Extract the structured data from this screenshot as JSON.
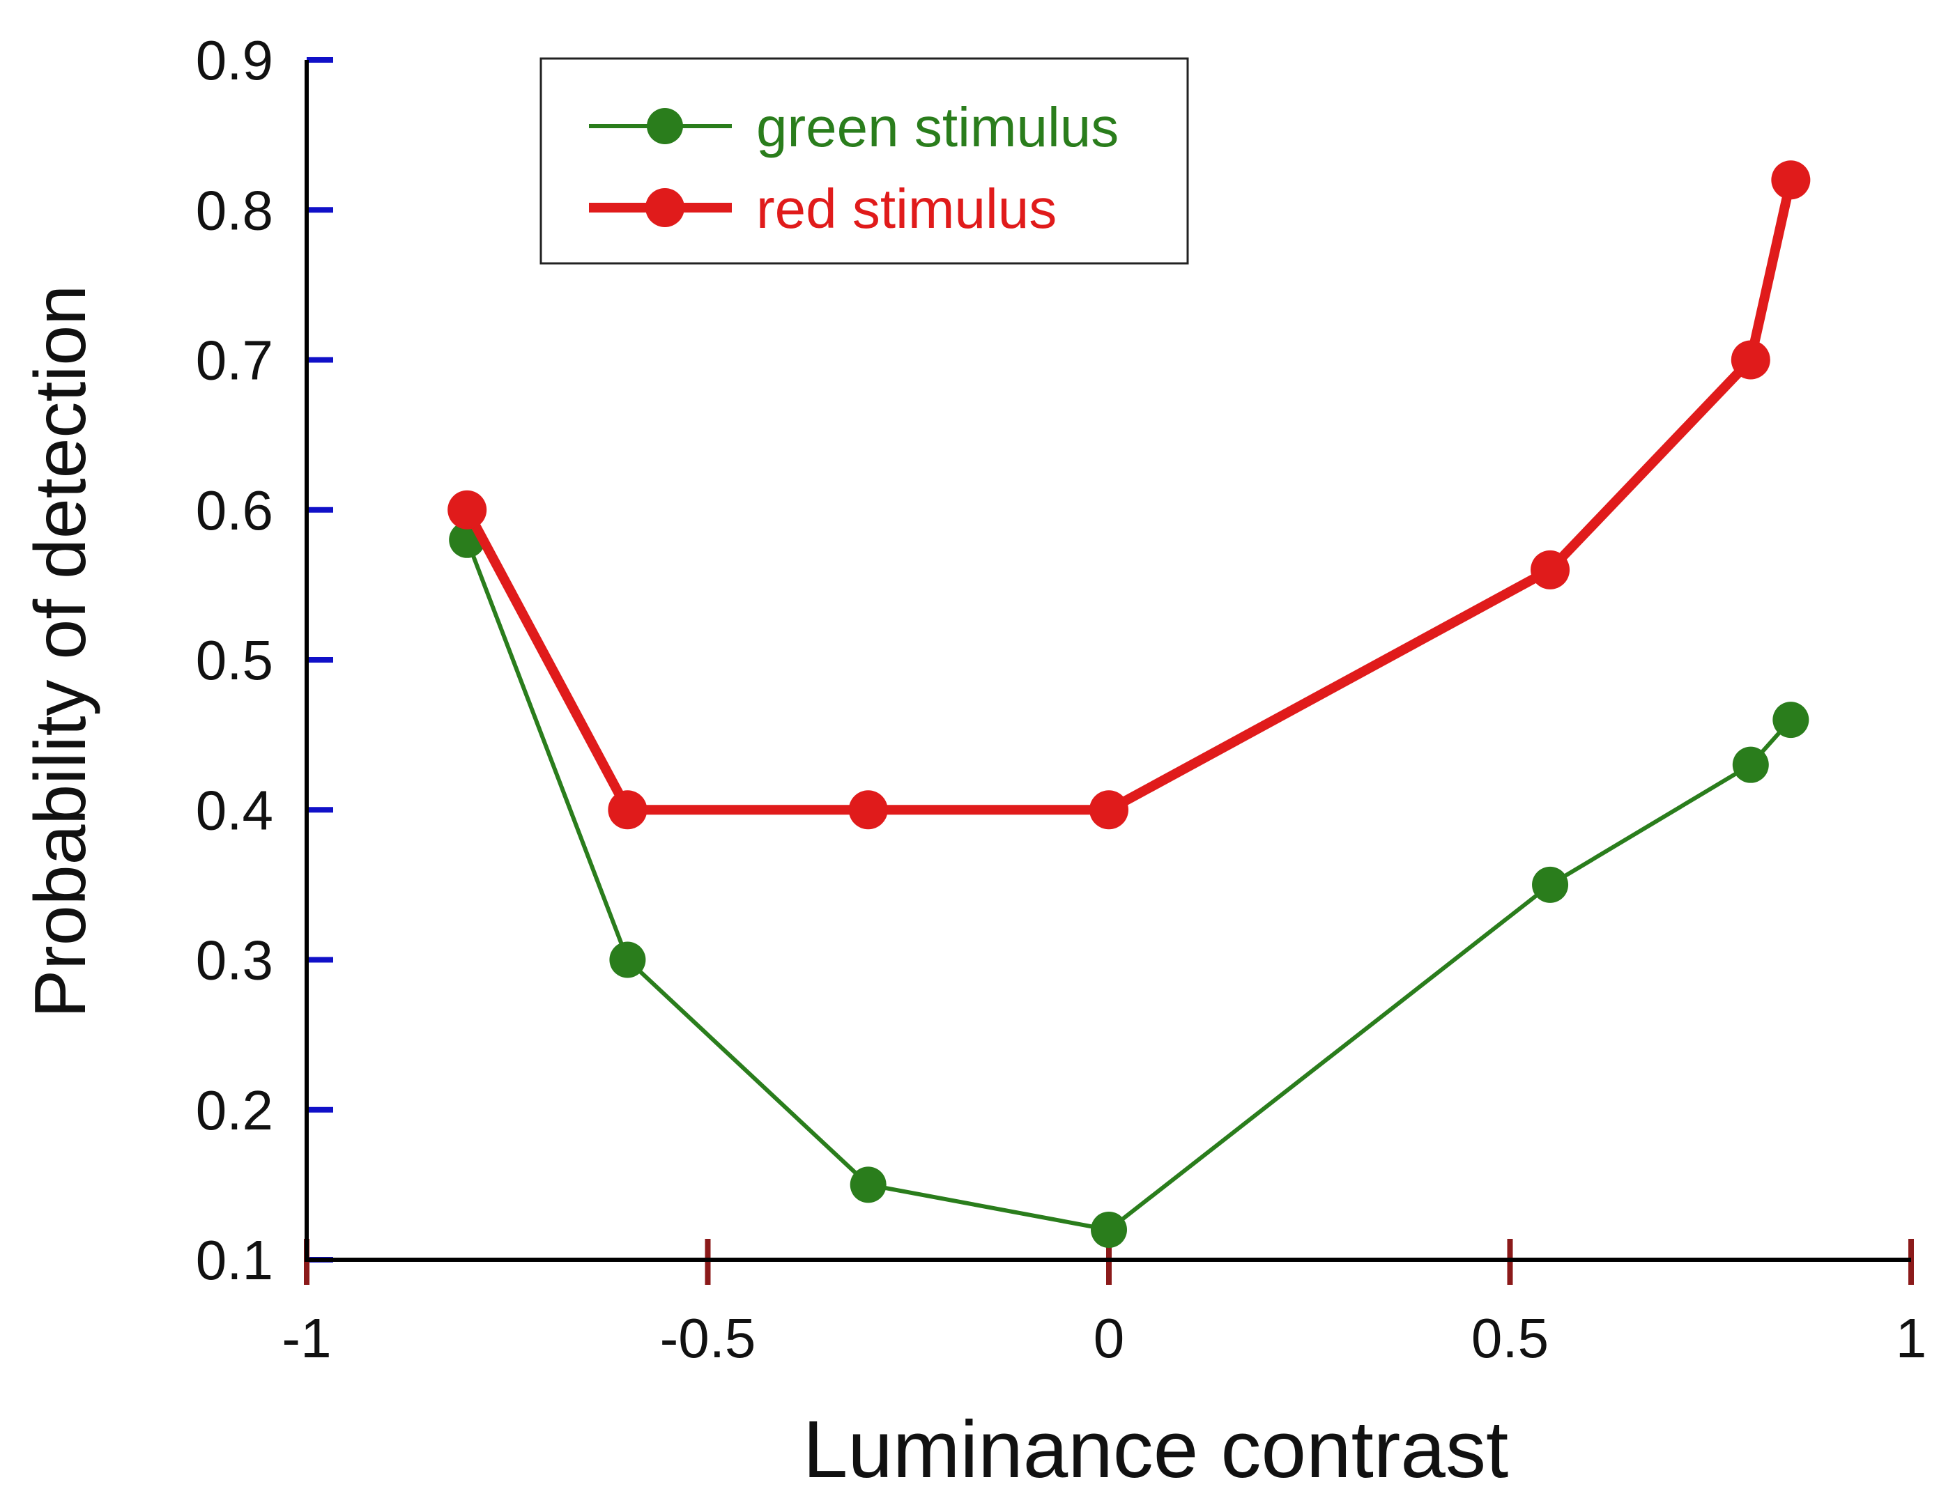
{
  "chart_data": {
    "type": "line",
    "title": "",
    "xlabel": "Luminance contrast",
    "ylabel": "Probability of detection",
    "xlim": [
      -1,
      1
    ],
    "ylim": [
      0.1,
      0.9
    ],
    "x_ticks": [
      -1,
      -0.5,
      0,
      0.5,
      1
    ],
    "x_tick_labels": [
      "-1",
      "-0.5",
      "0",
      "0.5",
      "1"
    ],
    "y_ticks": [
      0.1,
      0.2,
      0.3,
      0.4,
      0.5,
      0.6,
      0.7,
      0.8,
      0.9
    ],
    "y_tick_labels": [
      "0.1",
      "0.2",
      "0.3",
      "0.4",
      "0.5",
      "0.6",
      "0.7",
      "0.8",
      "0.9"
    ],
    "grid": false,
    "legend_position": "top-left",
    "series": [
      {
        "name": "green stimulus",
        "color": "#2a7d1c",
        "x": [
          -0.8,
          -0.6,
          -0.3,
          0,
          0.55,
          0.8,
          0.85
        ],
        "y": [
          0.58,
          0.3,
          0.15,
          0.12,
          0.35,
          0.43,
          0.46
        ]
      },
      {
        "name": "red stimulus",
        "color": "#e01b1b",
        "x": [
          -0.8,
          -0.6,
          -0.3,
          0,
          0.55,
          0.8,
          0.85
        ],
        "y": [
          0.6,
          0.4,
          0.4,
          0.4,
          0.56,
          0.7,
          0.82
        ]
      }
    ],
    "y_tick_color": "#1010c8",
    "x_tick_color": "#8b1a1a"
  }
}
